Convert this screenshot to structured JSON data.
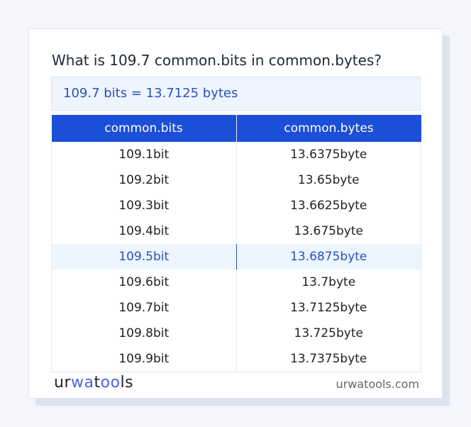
{
  "title": "What is 109.7 common.bits in common.bytes?",
  "result": "109.7 bits = 13.7125 bytes",
  "table": {
    "headers": [
      "common.bits",
      "common.bytes"
    ],
    "rows": [
      [
        "109.1bit",
        "13.6375byte"
      ],
      [
        "109.2bit",
        "13.65byte"
      ],
      [
        "109.3bit",
        "13.6625byte"
      ],
      [
        "109.4bit",
        "13.675byte"
      ],
      [
        "109.5bit",
        "13.6875byte"
      ],
      [
        "109.6bit",
        "13.7byte"
      ],
      [
        "109.7bit",
        "13.7125byte"
      ],
      [
        "109.8bit",
        "13.725byte"
      ],
      [
        "109.9bit",
        "13.7375byte"
      ]
    ],
    "highlighted_row": 4
  },
  "footer": {
    "logo": "urwatools",
    "site": "urwatools.com"
  },
  "colors": {
    "accent": "#1b4fd8",
    "highlight_bg": "#edf5fe",
    "highlight_text": "#2a52b8"
  }
}
